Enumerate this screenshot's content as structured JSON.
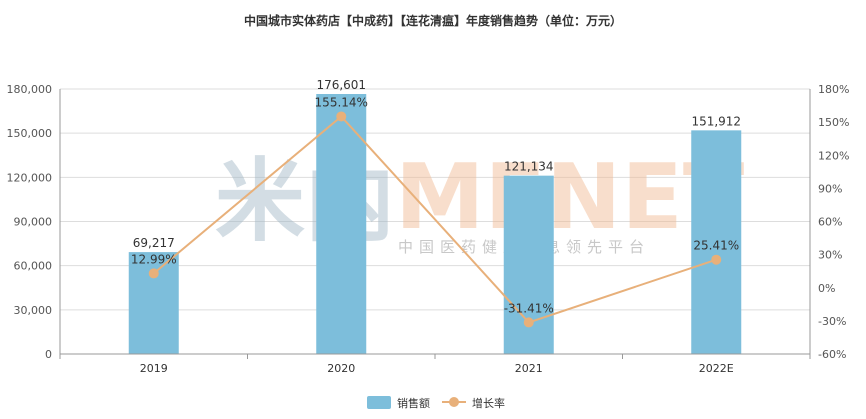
{
  "title": "中国城市实体药店【中成药】【连花清瘟】年度销售趋势（单位：万元）",
  "watermark": {
    "left": "米内",
    "brand": "MENET",
    "tagline": "中国医药健康信息领先平台"
  },
  "chart_data": {
    "type": "bar",
    "categories": [
      "2019",
      "2020",
      "2021",
      "2022E"
    ],
    "series": [
      {
        "name": "销售额",
        "type": "bar",
        "axis": "left",
        "color": "#7dbedb",
        "values": [
          69217,
          176601,
          121134,
          151912
        ],
        "labels": [
          "69,217",
          "176,601",
          "121,134",
          "151,912"
        ]
      },
      {
        "name": "增长率",
        "type": "line",
        "axis": "right",
        "color": "#e8b07a",
        "values": [
          12.99,
          155.14,
          -31.41,
          25.41
        ],
        "labels": [
          "12.99%",
          "155.14%",
          "-31.41%",
          "25.41%"
        ]
      }
    ],
    "y_left": {
      "min": 0,
      "max": 180000,
      "step": 30000,
      "tick_labels": [
        "0",
        "30,000",
        "60,000",
        "90,000",
        "120,000",
        "150,000",
        "180,000"
      ]
    },
    "y_right": {
      "min": -60,
      "max": 180,
      "step": 30,
      "tick_labels": [
        "-60%",
        "-30%",
        "0%",
        "30%",
        "60%",
        "90%",
        "120%",
        "150%",
        "180%"
      ]
    },
    "grid": true,
    "legend_position": "bottom-center"
  }
}
